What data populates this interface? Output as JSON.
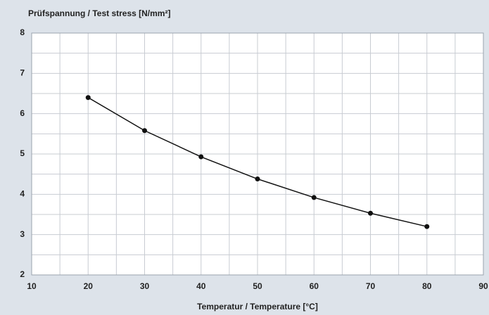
{
  "chart_data": {
    "type": "line",
    "title": "Prüfspannung / Test stress  [N/mm²]",
    "x_label": "Temperatur / Temperature  [°C]",
    "x": [
      20,
      30,
      40,
      50,
      60,
      70,
      80
    ],
    "series": [
      {
        "name": "Test stress",
        "color": "#111111",
        "values": [
          6.4,
          5.58,
          4.93,
          4.38,
          3.92,
          3.53,
          3.2
        ]
      }
    ],
    "xlim": [
      10,
      90
    ],
    "xticks": [
      10,
      20,
      30,
      40,
      50,
      60,
      70,
      80,
      90
    ],
    "ylim": [
      2,
      8
    ],
    "yticks": [
      2,
      3,
      4,
      5,
      6,
      7,
      8
    ],
    "grid": true
  }
}
